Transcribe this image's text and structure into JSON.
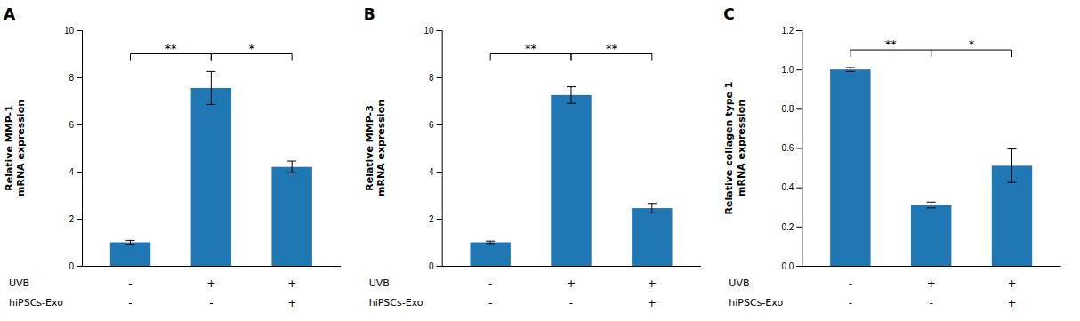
{
  "chart_data": [
    {
      "type": "bar",
      "title": "A",
      "ylabel": "Relative MMP-1\nmRNA expression",
      "categories": [
        null,
        null,
        null
      ],
      "values": [
        1.0,
        7.55,
        4.2
      ],
      "errors": [
        0.08,
        0.7,
        0.25
      ],
      "ylim": [
        0,
        10
      ],
      "yticks": [
        0,
        2,
        4,
        6,
        8,
        10
      ],
      "tick_labels": "y",
      "annotations": [
        {
          "text": "**",
          "from": 0,
          "to": 1,
          "y": 9.0
        },
        {
          "text": "*",
          "from": 1,
          "to": 2,
          "y": 9.0
        }
      ],
      "condition_rows": [
        {
          "label": "UVB",
          "labels": [
            "-",
            "+",
            "+"
          ]
        },
        {
          "label": "hiPSCs-Exo",
          "labels": [
            "-",
            "-",
            "+"
          ]
        }
      ]
    },
    {
      "type": "bar",
      "title": "B",
      "ylabel": "Relative MMP-3\nmRNA expression",
      "categories": [
        null,
        null,
        null
      ],
      "values": [
        1.0,
        7.25,
        2.45
      ],
      "errors": [
        0.05,
        0.35,
        0.2
      ],
      "ylim": [
        0,
        10
      ],
      "yticks": [
        0,
        2,
        4,
        6,
        8,
        10
      ],
      "tick_labels": "y",
      "annotations": [
        {
          "text": "**",
          "from": 0,
          "to": 1,
          "y": 9.0
        },
        {
          "text": "**",
          "from": 1,
          "to": 2,
          "y": 9.0
        }
      ],
      "condition_rows": [
        {
          "label": "UVB",
          "labels": [
            "-",
            "+",
            "+"
          ]
        },
        {
          "label": "hiPSCs-Exo",
          "labels": [
            "-",
            "-",
            "+"
          ]
        }
      ]
    },
    {
      "type": "bar",
      "title": "C",
      "ylabel": "Relative collagen type 1\nmRNA expression",
      "categories": [
        null,
        null,
        null
      ],
      "values": [
        1.0,
        0.31,
        0.51
      ],
      "errors": [
        0.01,
        0.015,
        0.085
      ],
      "ylim": [
        0,
        1.2
      ],
      "yticks": [
        {
          "value": 0.0,
          "label": "0.0"
        },
        0.2,
        0.4,
        0.6,
        0.8,
        {
          "value": 1.0,
          "label": "1.0"
        },
        1.2
      ],
      "tick_labels": "y",
      "annotations": [
        {
          "text": "**",
          "from": 0,
          "to": 1,
          "y": 1.1
        },
        {
          "text": "*",
          "from": 1,
          "to": 2,
          "y": 1.1
        }
      ],
      "condition_rows": [
        {
          "label": "UVB",
          "labels": [
            "-",
            "+",
            "+"
          ]
        },
        {
          "label": "hiPSCs-Exo",
          "labels": [
            "-",
            "-",
            "+"
          ]
        }
      ]
    }
  ]
}
